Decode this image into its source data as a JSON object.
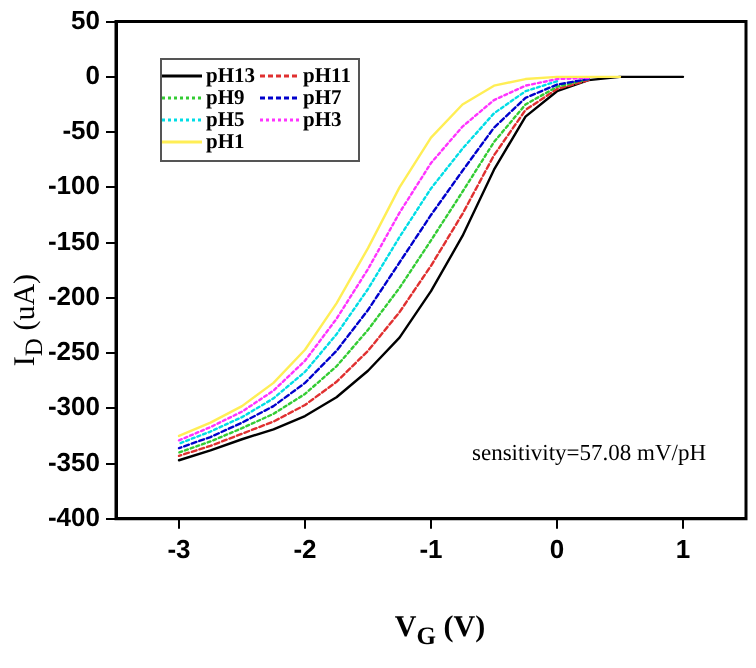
{
  "chart_data": {
    "type": "line",
    "xlabel": "V$_{G}$ (V)",
    "ylabel": "I$_{D}$ (uA)",
    "x": [
      -3,
      -2.75,
      -2.5,
      -2.25,
      -2,
      -1.75,
      -1.5,
      -1.25,
      -1,
      -0.75,
      -0.5,
      -0.25,
      0,
      0.25,
      0.5,
      0.75,
      1
    ],
    "series": [
      {
        "name": "pH13",
        "color": "#000000",
        "line_style": "solid",
        "values": [
          -347,
          -338,
          -328,
          -319,
          -307,
          -290,
          -266,
          -236,
          -194,
          -144,
          -84,
          -36,
          -13,
          -3,
          0,
          0,
          0
        ]
      },
      {
        "name": "pH11",
        "color": "#e03030",
        "line_style": "dashed",
        "values": [
          -343,
          -334,
          -323,
          -312,
          -297,
          -276,
          -248,
          -213,
          -171,
          -124,
          -71,
          -30,
          -11,
          -3,
          null,
          null,
          null
        ]
      },
      {
        "name": "pH9",
        "color": "#33cc33",
        "line_style": "dotted",
        "values": [
          -340,
          -330,
          -318,
          -305,
          -287,
          -262,
          -229,
          -191,
          -148,
          -104,
          -59,
          -25,
          -9,
          -2,
          null,
          null,
          null
        ]
      },
      {
        "name": "pH7",
        "color": "#0000cc",
        "line_style": "dashed",
        "values": [
          -336,
          -326,
          -313,
          -298,
          -277,
          -248,
          -211,
          -168,
          -125,
          -85,
          -46,
          -19,
          -7,
          -2,
          null,
          null,
          null
        ]
      },
      {
        "name": "pH5",
        "color": "#00dde6",
        "line_style": "dotted",
        "values": [
          -332,
          -321,
          -308,
          -291,
          -267,
          -233,
          -192,
          -145,
          -101,
          -65,
          -33,
          -13,
          -4,
          null,
          null,
          null,
          null
        ]
      },
      {
        "name": "pH3",
        "color": "#ff33ff",
        "line_style": "dotted",
        "values": [
          -329,
          -317,
          -303,
          -284,
          -257,
          -219,
          -174,
          -123,
          -78,
          -45,
          -21,
          -8,
          -2,
          -1,
          null,
          null,
          null
        ]
      },
      {
        "name": "pH1",
        "color": "#ffee55",
        "line_style": "solid",
        "values": [
          -325,
          -313,
          -298,
          -277,
          -247,
          -205,
          -155,
          -100,
          -55,
          -25,
          -8,
          -2,
          0,
          0,
          0,
          null,
          null
        ]
      }
    ],
    "xlim": [
      -3.5,
      1.5
    ],
    "xticks": [
      -3,
      -2,
      -1,
      0,
      1
    ],
    "ylim": [
      -400,
      50
    ],
    "yticks": [
      -400,
      -350,
      -300,
      -250,
      -200,
      -150,
      -100,
      -50,
      0,
      50
    ],
    "grid": false,
    "legend": "top left",
    "marker": "none",
    "annotations": [
      "sensitivity=57.08 mV/pH"
    ]
  }
}
